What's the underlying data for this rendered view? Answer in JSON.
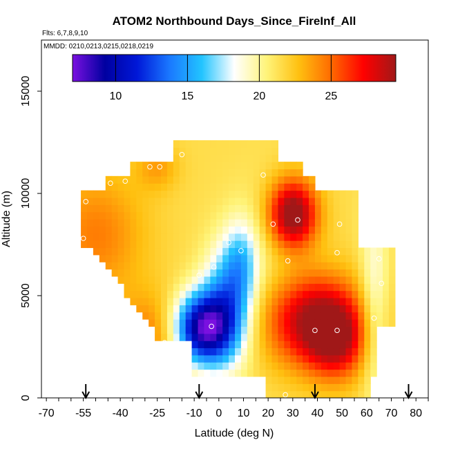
{
  "chart_data": {
    "type": "heatmap",
    "title": "ATOM2 Northbound Days_Since_FireInf_All",
    "flights_label": "Flts: 6,7,8,9,10",
    "mmdd_label": "MMDD: 0210,0213,0215,0218,0219",
    "xlabel": "Latitude (deg N)",
    "ylabel": "Altitude (m)",
    "xlim": [
      -72,
      85
    ],
    "ylim": [
      0,
      17500
    ],
    "x_ticks": [
      -70,
      -55,
      -40,
      -25,
      -10,
      0,
      10,
      20,
      30,
      40,
      50,
      60,
      70,
      80
    ],
    "x_tick_labels": [
      "-70",
      "-55",
      "-40",
      "-25",
      "-10",
      "0",
      "10",
      "20",
      "30",
      "40",
      "50",
      "60",
      "70",
      "80"
    ],
    "y_ticks": [
      0,
      5000,
      10000,
      15000
    ],
    "y_tick_labels": [
      "0",
      "5000",
      "10000",
      "15000"
    ],
    "colorbar": {
      "range": [
        7,
        29.5
      ],
      "ticks": [
        10,
        15,
        20,
        25
      ],
      "tick_labels": [
        "10",
        "15",
        "20",
        "25"
      ],
      "colors": [
        "#7a10e0",
        "#0000a0",
        "#0018d8",
        "#1a78ff",
        "#22c4ff",
        "#ffffff",
        "#fff47a",
        "#ffc010",
        "#ff6a00",
        "#ff0000",
        "#a01818"
      ]
    },
    "arrows_latitude": [
      -54,
      -8,
      39,
      77
    ],
    "points": [
      {
        "lat": -54,
        "alt": 9600
      },
      {
        "lat": -44,
        "alt": 10500
      },
      {
        "lat": -38,
        "alt": 10600
      },
      {
        "lat": -28,
        "alt": 11300
      },
      {
        "lat": -24,
        "alt": 11300
      },
      {
        "lat": -15,
        "alt": 11900
      },
      {
        "lat": 18,
        "alt": 10900
      },
      {
        "lat": 32,
        "alt": 8700
      },
      {
        "lat": 22,
        "alt": 8500
      },
      {
        "lat": 49,
        "alt": 8500
      },
      {
        "lat": -55,
        "alt": 7800
      },
      {
        "lat": 4,
        "alt": 7600
      },
      {
        "lat": 9,
        "alt": 7200
      },
      {
        "lat": 48,
        "alt": 7100
      },
      {
        "lat": 28,
        "alt": 6700
      },
      {
        "lat": 65,
        "alt": 6800
      },
      {
        "lat": -2,
        "alt": 6400
      },
      {
        "lat": -8,
        "alt": 6000
      },
      {
        "lat": 66,
        "alt": 5600
      },
      {
        "lat": 63,
        "alt": 3900
      },
      {
        "lat": -3,
        "alt": 3500
      },
      {
        "lat": 39,
        "alt": 3300
      },
      {
        "lat": 48,
        "alt": 3300
      },
      {
        "lat": -22,
        "alt": 2700
      },
      {
        "lat": 27,
        "alt": 150
      }
    ]
  }
}
